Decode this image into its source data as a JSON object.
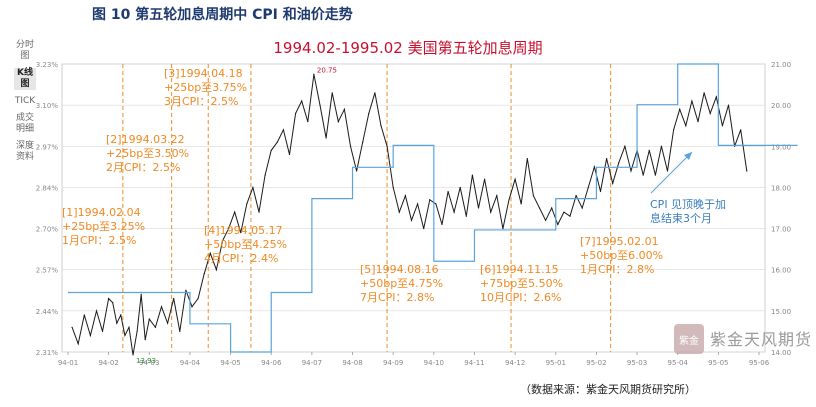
{
  "figure_title": "图 10 第五轮加息周期中 CPI 和油价走势",
  "source_note": "（数据来源：紫金天风期货研究所）",
  "toolbar": {
    "items": [
      "分时图",
      "K线图",
      "TICK",
      "成交明细",
      "深度资料"
    ],
    "active": "K线图"
  },
  "brand": {
    "seal_text": "紫金",
    "name": "紫金天风期货"
  },
  "colors": {
    "oil": "#1a1a1a",
    "cpi": "#5ba3dc",
    "events": "#f08a24",
    "title": "#c8102e",
    "grid": "#d9d9d9",
    "axis_text": "#888888"
  },
  "chart_data": {
    "type": "line",
    "title": "1994.02-1995.02 美国第五轮加息周期",
    "x_ticks": [
      "94-01",
      "94-02",
      "94-03",
      "94-04",
      "94-05",
      "94-06",
      "94-07",
      "94-08",
      "94-09",
      "94-10",
      "94-11",
      "94-12",
      "95-01",
      "95-02",
      "95-03",
      "95-04",
      "95-05",
      "95-06"
    ],
    "left_axis": {
      "ticks": [
        "2.31%",
        "2.44%",
        "2.57%",
        "2.70%",
        "2.84%",
        "2.97%",
        "3.10%",
        "3.23%"
      ],
      "ylim": [
        2.31,
        3.23
      ]
    },
    "right_axis": {
      "ticks": [
        "14.00",
        "15.00",
        "16.00",
        "17.00",
        "18.00",
        "19.00",
        "20.00",
        "21.00"
      ],
      "ylim": [
        14.0,
        21.0
      ]
    },
    "series": [
      {
        "name": "oil",
        "axis": "right",
        "x": [
          0.1,
          0.25,
          0.4,
          0.55,
          0.7,
          0.85,
          1.0,
          1.1,
          1.2,
          1.3,
          1.4,
          1.5,
          1.6,
          1.7,
          1.8,
          1.9,
          2.0,
          2.15,
          2.3,
          2.45,
          2.6,
          2.75,
          2.9,
          3.05,
          3.2,
          3.35,
          3.5,
          3.65,
          3.8,
          3.95,
          4.1,
          4.25,
          4.4,
          4.55,
          4.7,
          4.85,
          5.0,
          5.15,
          5.3,
          5.45,
          5.6,
          5.75,
          5.9,
          6.05,
          6.2,
          6.35,
          6.5,
          6.65,
          6.8,
          6.95,
          7.1,
          7.25,
          7.4,
          7.55,
          7.7,
          7.85,
          8.0,
          8.15,
          8.3,
          8.45,
          8.6,
          8.75,
          8.9,
          9.05,
          9.2,
          9.35,
          9.5,
          9.65,
          9.8,
          9.95,
          10.1,
          10.25,
          10.4,
          10.55,
          10.7,
          10.85,
          11.0,
          11.15,
          11.3,
          11.45,
          11.6,
          11.75,
          11.9,
          12.05,
          12.2,
          12.35,
          12.5,
          12.65,
          12.8,
          12.95,
          13.1,
          13.25,
          13.4,
          13.55,
          13.7,
          13.85,
          14.0,
          14.15,
          14.3,
          14.45,
          14.6,
          14.75,
          14.9,
          15.05,
          15.2,
          15.35,
          15.5,
          15.65,
          15.8,
          15.95,
          16.1,
          16.25,
          16.4,
          16.55,
          16.7
        ],
        "values": [
          14.6,
          14.2,
          14.9,
          14.4,
          15.0,
          14.5,
          15.3,
          15.2,
          14.7,
          14.9,
          14.4,
          14.6,
          13.93,
          14.5,
          15.4,
          14.3,
          14.8,
          14.6,
          15.1,
          14.7,
          15.3,
          14.5,
          15.5,
          15.1,
          15.3,
          15.9,
          16.4,
          16.0,
          16.7,
          17.0,
          17.4,
          16.9,
          17.6,
          18.0,
          17.4,
          18.3,
          18.9,
          19.1,
          19.4,
          18.8,
          19.8,
          20.1,
          19.6,
          20.75,
          20.0,
          19.2,
          20.3,
          19.6,
          19.9,
          19.0,
          18.4,
          19.1,
          19.8,
          20.3,
          19.5,
          19.0,
          18.0,
          17.4,
          17.8,
          17.2,
          17.6,
          17.0,
          17.7,
          17.6,
          17.1,
          17.9,
          17.4,
          18.0,
          17.3,
          18.3,
          17.5,
          18.2,
          17.4,
          17.8,
          17.0,
          17.7,
          18.2,
          17.6,
          18.7,
          17.8,
          17.5,
          17.2,
          17.5,
          17.1,
          17.4,
          17.3,
          17.8,
          17.5,
          18.0,
          18.5,
          17.9,
          18.7,
          18.1,
          18.6,
          19.0,
          18.4,
          18.9,
          18.3,
          18.9,
          18.3,
          19.0,
          18.4,
          19.4,
          19.9,
          19.5,
          20.1,
          19.6,
          20.3,
          19.8,
          20.2,
          19.5,
          20.0,
          19.0,
          19.4,
          18.4
        ],
        "labels": [
          {
            "x": 1.6,
            "text": "13.93"
          },
          {
            "x": 6.05,
            "text": "20.75"
          }
        ]
      },
      {
        "name": "cpi",
        "axis": "left",
        "x": [
          0,
          1,
          2,
          3,
          4,
          5,
          6,
          7,
          8,
          9,
          10,
          11,
          12,
          13,
          14,
          15,
          16,
          17
        ],
        "values": [
          2.5,
          2.5,
          2.5,
          2.4,
          2.31,
          2.5,
          2.8,
          2.9,
          2.97,
          2.6,
          2.7,
          2.7,
          2.8,
          2.9,
          3.1,
          3.23,
          2.97,
          2.97
        ]
      }
    ],
    "events": [
      {
        "x": 1.35,
        "label_lines": [
          "[1]1994.02.04",
          "+25bp至3.25%",
          "1月CPI：2.5%"
        ]
      },
      {
        "x": 2.55,
        "label_lines": [
          "[2]1994.03.22",
          "+25bp至3.50%",
          "2月CPI：2.5%"
        ]
      },
      {
        "x": 3.45,
        "label_lines": [
          "[3]1994.04.18",
          "+25bp至3.75%",
          "3月CPI：2.5%"
        ]
      },
      {
        "x": 4.5,
        "label_lines": [
          "[4]1994.05.17",
          "+50bp至4.25%",
          "4月CPI：2.4%"
        ]
      },
      {
        "x": 7.85,
        "label_lines": [
          "[5]1994.08.16",
          "+50bp至4.75%",
          "7月CPI：2.8%"
        ]
      },
      {
        "x": 10.9,
        "label_lines": [
          "[6]1994.11.15",
          "+75bp至5.50%",
          "10月CPI：2.6%"
        ]
      },
      {
        "x": 13.35,
        "label_lines": [
          "[7]1995.02.01",
          "+50bp至6.00%",
          "1月CPI：2.8%"
        ]
      }
    ],
    "annotation": {
      "text_lines": [
        "CPI 见顶晚于加",
        "息结束3个月"
      ]
    },
    "grid": true
  }
}
